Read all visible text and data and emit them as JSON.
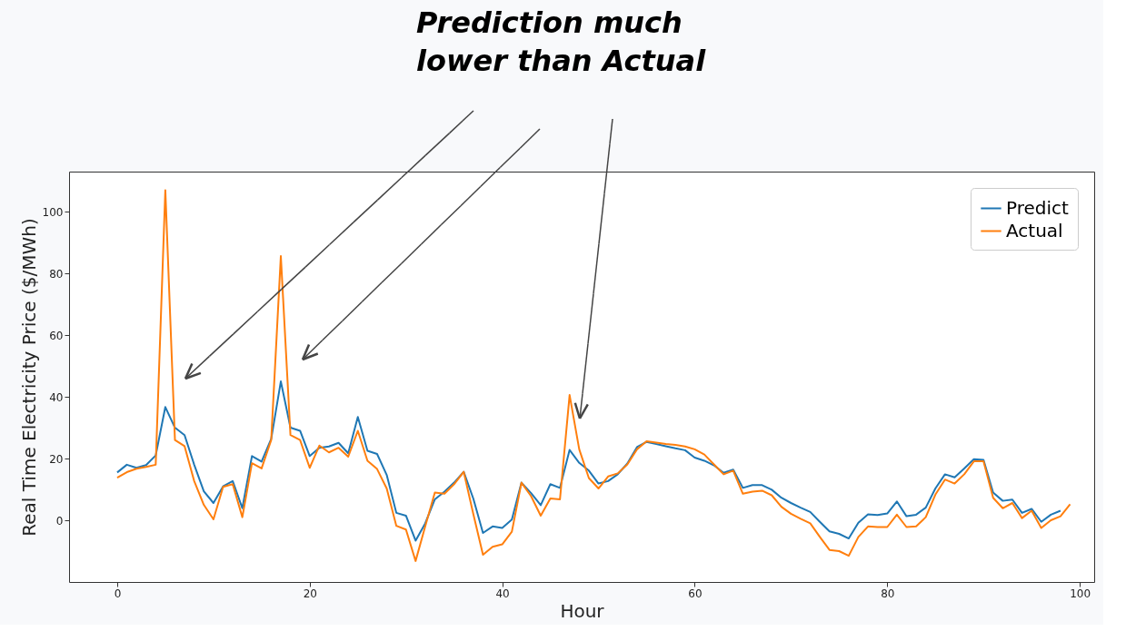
{
  "chart_data": {
    "type": "line",
    "xlabel": "Hour",
    "ylabel": "Real Time Electricity Price ($/MWh)",
    "annotations": [
      "Prediction much\nlower than Actual"
    ],
    "x": [
      0,
      1,
      2,
      3,
      4,
      5,
      6,
      7,
      8,
      9,
      10,
      11,
      12,
      13,
      14,
      15,
      16,
      17,
      18,
      19,
      20,
      21,
      22,
      23,
      24,
      25,
      26,
      27,
      28,
      29,
      30,
      31,
      32,
      33,
      34,
      35,
      36,
      37,
      38,
      39,
      40,
      41,
      42,
      43,
      44,
      45,
      46,
      47,
      48,
      49,
      50,
      51,
      52,
      53,
      54,
      55,
      56,
      57,
      58,
      59,
      60,
      61,
      62,
      63,
      64,
      65,
      66,
      67,
      68,
      69,
      70,
      71,
      72,
      73,
      74,
      75,
      76,
      77,
      78,
      79,
      80,
      81,
      82,
      83,
      84,
      85,
      86,
      87,
      88,
      89,
      90,
      91,
      92,
      93,
      94,
      95,
      96,
      97,
      98,
      99
    ],
    "series": [
      {
        "name": "Predict",
        "color": "#1f77b4",
        "values": [
          15.5,
          18,
          17,
          17.9,
          21,
          36.7,
          30,
          27.6,
          18,
          9.4,
          5.6,
          11,
          12.7,
          3.9,
          20.8,
          19,
          26.4,
          45,
          30,
          29,
          20.8,
          23.5,
          23.9,
          25.1,
          21.7,
          33.5,
          22.5,
          21.5,
          14.7,
          2.4,
          1.5,
          -6.6,
          -1,
          6.8,
          9.3,
          12.2,
          15.7,
          7,
          -4.1,
          -2,
          -2.5,
          0.2,
          12.2,
          8.8,
          4.9,
          11.7,
          10.5,
          22.8,
          18.6,
          16.1,
          11.9,
          12.7,
          14.9,
          18.4,
          23.7,
          25.4,
          24.7,
          24,
          23.3,
          22.7,
          20.3,
          19.3,
          17.8,
          15.4,
          16.4,
          10.5,
          11.4,
          11.4,
          9.9,
          7.3,
          5.6,
          4.1,
          2.7,
          -0.5,
          -3.6,
          -4.4,
          -5.9,
          -0.8,
          1.9,
          1.7,
          2.2,
          6.1,
          1.3,
          1.8,
          4.1,
          10.3,
          14.9,
          13.9,
          16.8,
          19.8,
          19.6,
          9,
          6.3,
          6.7,
          2.4,
          3.7,
          -0.5,
          1.8,
          3.1,
          null
        ]
      },
      {
        "name": "Actual",
        "color": "#ff7f0e",
        "values": [
          13.8,
          15.6,
          16.7,
          17.3,
          18,
          107,
          26,
          24,
          12.7,
          5,
          0.3,
          10.8,
          11.7,
          1,
          18.5,
          16.8,
          26,
          85.6,
          27.6,
          26,
          17,
          24.2,
          22,
          23.5,
          20.6,
          29,
          19.3,
          16.6,
          10.3,
          -1.8,
          -3,
          -13.2,
          -2,
          9,
          8.6,
          11.7,
          15.7,
          2,
          -11.2,
          -8.6,
          -7.8,
          -3.7,
          12.2,
          7.8,
          1.5,
          7.1,
          6.8,
          40.6,
          23,
          13.7,
          10.3,
          14.2,
          15.2,
          18.1,
          23,
          25.6,
          25.2,
          24.7,
          24.4,
          23.9,
          23,
          21.3,
          18.1,
          14.9,
          16.1,
          8.6,
          9.3,
          9.6,
          8.1,
          4.4,
          2.1,
          0.5,
          -1,
          -5.4,
          -9.6,
          -10,
          -11.5,
          -5.4,
          -2,
          -2.2,
          -2.2,
          1.8,
          -2.2,
          -2,
          1,
          8.3,
          13.2,
          11.9,
          14.9,
          19.1,
          19.1,
          7.3,
          3.9,
          5.6,
          0.7,
          3.1,
          -2.5,
          0,
          1.3,
          5.2
        ]
      }
    ],
    "xlim": [
      -5,
      101.5
    ],
    "ylim": [
      -20,
      113
    ],
    "xticks": [
      0,
      20,
      40,
      60,
      80,
      100
    ],
    "yticks": [
      0,
      20,
      40,
      60,
      80,
      100
    ],
    "grid": false,
    "legend": "top right",
    "line_style": "solid",
    "marker": "none"
  }
}
